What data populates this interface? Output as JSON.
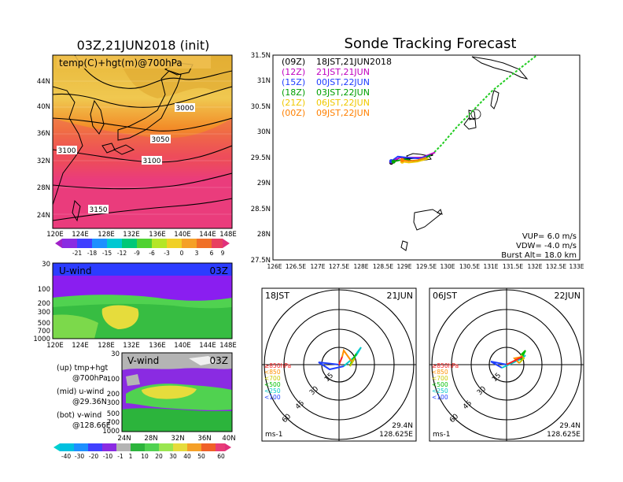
{
  "map_panel": {
    "title": "03Z,21JUN2018 (init)",
    "field_label": "temp(C)+hgt(m)@700hPa",
    "lat_ticks": [
      "44N",
      "40N",
      "36N",
      "32N",
      "28N",
      "24N"
    ],
    "lon_ticks": [
      "120E",
      "124E",
      "128E",
      "132E",
      "136E",
      "140E",
      "144E",
      "148E"
    ],
    "contour_labels": [
      "3000",
      "3050",
      "3100",
      "3100",
      "3150"
    ],
    "colorbar_ticks": [
      "-21",
      "-18",
      "-15",
      "-12",
      "-9",
      "-6",
      "-3",
      "0",
      "3",
      "6",
      "9"
    ]
  },
  "uwind_panel": {
    "label": "U-wind",
    "time": "03Z",
    "p_ticks": [
      "30",
      "100",
      "200",
      "300",
      "500",
      "700",
      "1000"
    ],
    "lon_ticks": [
      "120E",
      "124E",
      "128E",
      "132E",
      "136E",
      "140E",
      "144E",
      "148E"
    ]
  },
  "vwind_panel": {
    "label": "V-wind",
    "time": "03Z",
    "p_ticks": [
      "30",
      "100",
      "200",
      "300",
      "500",
      "700",
      "1000"
    ],
    "lat_ticks": [
      "24N",
      "28N",
      "32N",
      "36N",
      "40N"
    ],
    "colorbar_ticks": [
      "-40",
      "-30",
      "-20",
      "-10",
      "-1",
      "1",
      "10",
      "20",
      "30",
      "40",
      "50",
      "60"
    ]
  },
  "legend_notes": {
    "up_line1": "(up)  tmp+hgt",
    "up_line2": "@700hPa",
    "mid_line1": "(mid)  u-wind",
    "mid_line2": "@29.36N",
    "bot_line1": "(bot)  v-wind",
    "bot_line2": "@128.66E"
  },
  "track_panel": {
    "title": "Sonde Tracking Forecast",
    "legend": [
      {
        "z": "(09Z)",
        "jst": "18JST,21JUN2018",
        "color": "#000000"
      },
      {
        "z": "(12Z)",
        "jst": "21JST,21JUN",
        "color": "#c000c0"
      },
      {
        "z": "(15Z)",
        "jst": "00JST,22JUN",
        "color": "#1e3cff"
      },
      {
        "z": "(18Z)",
        "jst": "03JST,22JUN",
        "color": "#00a000"
      },
      {
        "z": "(21Z)",
        "jst": "06JST,22JUN",
        "color": "#f0c800"
      },
      {
        "z": "(00Z)",
        "jst": "09JST,22JUN",
        "color": "#ff8000"
      }
    ],
    "lat_ticks": [
      "31.5N",
      "31N",
      "30.5N",
      "30N",
      "29.5N",
      "29N",
      "28.5N",
      "28N",
      "27.5N"
    ],
    "lon_ticks": [
      "126E",
      "126.5E",
      "127E",
      "127.5E",
      "128E",
      "128.5E",
      "129E",
      "129.5E",
      "130E",
      "130.5E",
      "131E",
      "131.5E",
      "132E",
      "132.5E",
      "133E"
    ],
    "params": {
      "vup": "VUP=  6.0  m/s",
      "vdw": "VDW= -4.0  m/s",
      "burst": "Burst Alt=  18.0  km"
    }
  },
  "hodographs": [
    {
      "time": "18JST",
      "date": "21JUN",
      "lat": "29.4N",
      "lon": "128.625E",
      "unit": "ms-1",
      "rings": [
        "15",
        "30",
        "45",
        "60"
      ]
    },
    {
      "time": "06JST",
      "date": "22JUN",
      "lat": "29.4N",
      "lon": "128.625E",
      "unit": "ms-1",
      "rings": [
        "15",
        "30",
        "45",
        "60"
      ]
    }
  ],
  "hodo_levels": [
    {
      "label": "≥850hPa",
      "color": "#ff2020"
    },
    {
      "label": "<850",
      "color": "#ff9000"
    },
    {
      "label": "<700",
      "color": "#c8c800"
    },
    {
      "label": "<500",
      "color": "#00c000"
    },
    {
      "label": "<250",
      "color": "#00c8c8"
    },
    {
      "label": "<100",
      "color": "#2040ff"
    }
  ],
  "chart_data": {
    "type": "line",
    "title": "Sonde Tracking Forecast",
    "xlim": [
      126,
      133
    ],
    "ylim": [
      27.5,
      31.5
    ],
    "series": [
      {
        "name": "(09Z) 18JST,21JUN2018",
        "color": "#000000",
        "x": [
          129.65,
          129.4,
          129.1,
          128.9,
          128.7
        ],
        "y": [
          29.55,
          29.5,
          29.48,
          29.5,
          29.4
        ]
      },
      {
        "name": "(12Z) 21JST,21JUN",
        "color": "#c000c0",
        "x": [
          129.7,
          129.4,
          129.1,
          128.9,
          128.7
        ],
        "y": [
          29.6,
          29.5,
          29.5,
          29.5,
          29.42
        ]
      },
      {
        "name": "(15Z) 00JST,22JUN",
        "color": "#1e3cff",
        "x": [
          129.6,
          129.35,
          129.05,
          128.85,
          128.7
        ],
        "y": [
          29.55,
          29.48,
          29.5,
          29.52,
          29.43
        ]
      },
      {
        "name": "(18Z) 03JST,22JUN",
        "color": "#00a000",
        "x": [
          129.6,
          129.4,
          129.2,
          129.0,
          128.75
        ],
        "y": [
          29.55,
          29.45,
          29.43,
          29.47,
          29.42
        ]
      },
      {
        "name": "(21Z) 06JST,22JUN",
        "color": "#f0c800",
        "x": [
          129.55,
          129.3,
          129.1,
          128.95
        ],
        "y": [
          29.48,
          29.42,
          29.4,
          29.42
        ]
      },
      {
        "name": "(00Z) 09JST,22JUN",
        "color": "#ff8000",
        "x": [
          129.5,
          129.3,
          129.1,
          128.95
        ],
        "y": [
          29.5,
          29.45,
          29.43,
          29.45
        ]
      }
    ],
    "ascent_path": {
      "color": "#22cc22",
      "x": [
        129.62,
        129.85,
        130.2,
        130.6,
        131.0,
        131.5,
        132.1,
        132.6
      ],
      "y": [
        29.55,
        29.75,
        30.1,
        30.45,
        30.8,
        31.15,
        31.55,
        31.9
      ]
    }
  }
}
